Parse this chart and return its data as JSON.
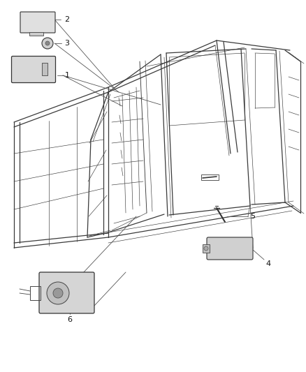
{
  "background_color": "#ffffff",
  "figsize": [
    4.38,
    5.33
  ],
  "dpi": 100,
  "line_color": "#3a3a3a",
  "lw_main": 0.9,
  "lw_thin": 0.45,
  "lw_med": 0.65
}
